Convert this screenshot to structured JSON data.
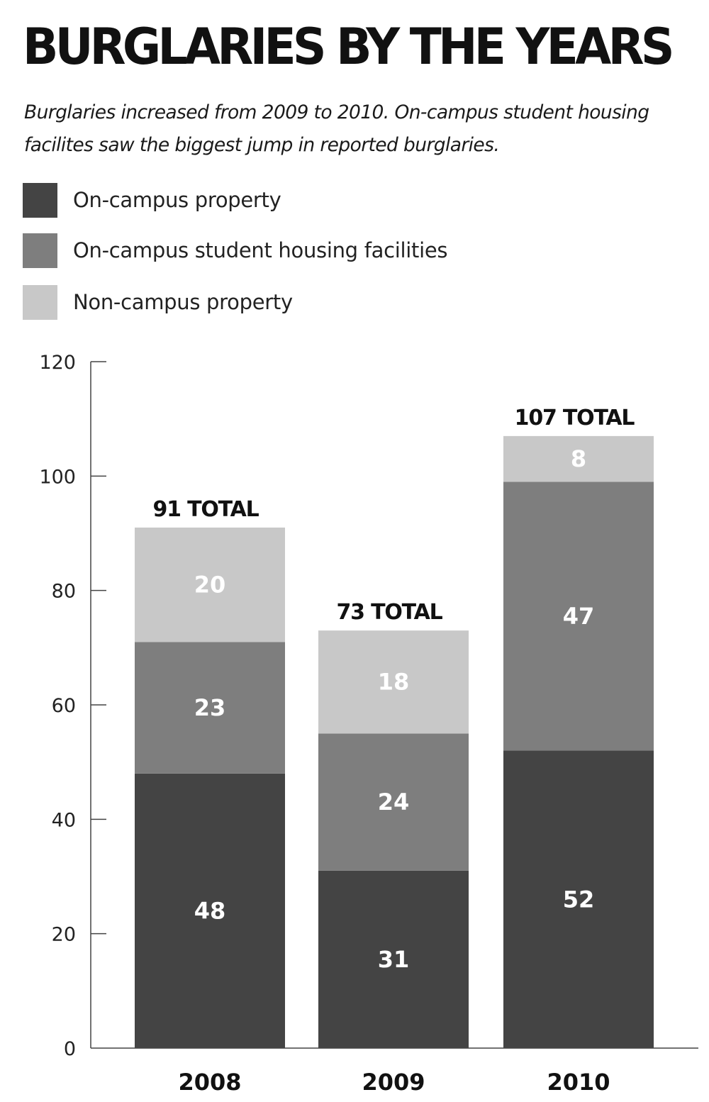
{
  "chart_data": {
    "type": "bar",
    "stacked": true,
    "title": "BURGLARIES BY THE YEARS",
    "subtitle": "Burglaries increased from 2009 to 2010. On-campus student housing facilites saw the biggest jump in reported burglaries.",
    "categories": [
      "2008",
      "2009",
      "2010"
    ],
    "series": [
      {
        "name": "On-campus property",
        "values": [
          48,
          31,
          52
        ],
        "color": "#444444",
        "label_color": "#ffffff"
      },
      {
        "name": "On-campus student housing facilities",
        "values": [
          23,
          24,
          47
        ],
        "color": "#7e7e7e",
        "label_color": "#ffffff"
      },
      {
        "name": "Non-campus property",
        "values": [
          20,
          18,
          8
        ],
        "color": "#c8c8c8",
        "label_color": "#ffffff"
      }
    ],
    "totals": [
      "91 TOTAL",
      "73 TOTAL",
      "107 TOTAL"
    ],
    "yticks": [
      "0",
      "20",
      "40",
      "60",
      "80",
      "100",
      "120"
    ],
    "ylim": [
      0,
      120
    ],
    "xlabel": "",
    "ylabel": "",
    "grid": false,
    "legend_position": "top-left"
  }
}
